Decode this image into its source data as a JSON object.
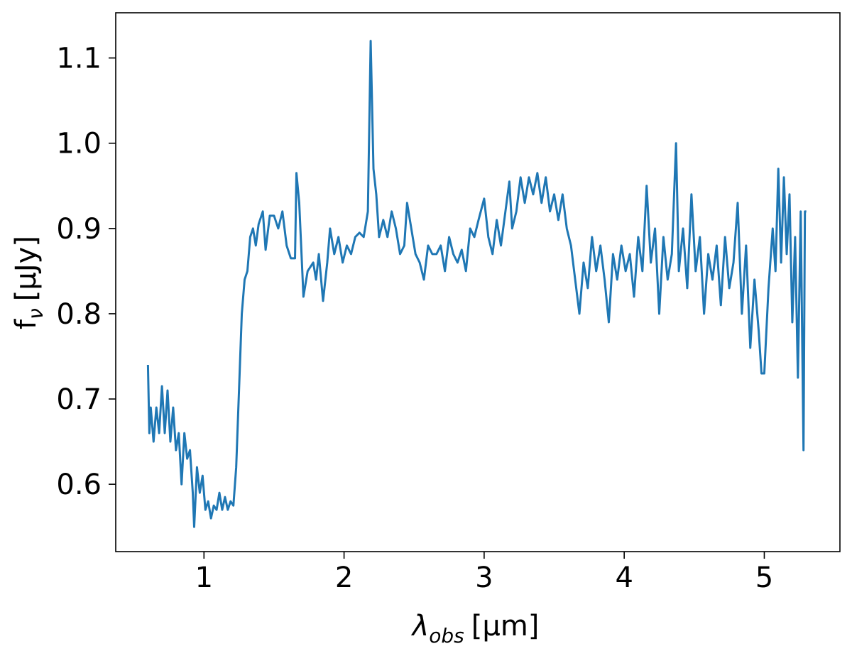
{
  "chart_data": {
    "type": "line",
    "x_label": {
      "main": "λ",
      "subscript": "obs",
      "rest": "[μm]"
    },
    "y_label": {
      "main": "f",
      "subscript": "ν",
      "rest": "[μJy]"
    },
    "xlim": [
      0.37,
      5.54
    ],
    "ylim": [
      0.521,
      1.153
    ],
    "xticks": [
      1,
      2,
      3,
      4,
      5
    ],
    "yticks": [
      0.6,
      0.7,
      0.8,
      0.9,
      {
        "value": 1,
        "label": "1.0"
      },
      1.1
    ],
    "grid": false,
    "series": [
      {
        "color": "#1f77b4",
        "x": [
          0.6,
          0.61,
          0.62,
          0.64,
          0.66,
          0.68,
          0.7,
          0.72,
          0.74,
          0.76,
          0.78,
          0.8,
          0.82,
          0.84,
          0.86,
          0.88,
          0.9,
          0.92,
          0.93,
          0.95,
          0.97,
          0.99,
          1.01,
          1.03,
          1.05,
          1.07,
          1.09,
          1.11,
          1.13,
          1.15,
          1.17,
          1.19,
          1.21,
          1.23,
          1.25,
          1.27,
          1.29,
          1.31,
          1.33,
          1.35,
          1.37,
          1.39,
          1.42,
          1.44,
          1.47,
          1.5,
          1.53,
          1.56,
          1.59,
          1.62,
          1.65,
          1.66,
          1.68,
          1.71,
          1.74,
          1.78,
          1.8,
          1.82,
          1.85,
          1.88,
          1.9,
          1.93,
          1.96,
          1.99,
          2.02,
          2.05,
          2.08,
          2.11,
          2.14,
          2.17,
          2.19,
          2.21,
          2.23,
          2.25,
          2.28,
          2.31,
          2.34,
          2.37,
          2.4,
          2.43,
          2.45,
          2.48,
          2.51,
          2.54,
          2.57,
          2.6,
          2.63,
          2.66,
          2.69,
          2.72,
          2.75,
          2.78,
          2.81,
          2.84,
          2.87,
          2.9,
          2.93,
          2.96,
          3.0,
          3.03,
          3.06,
          3.09,
          3.12,
          3.18,
          3.2,
          3.23,
          3.26,
          3.29,
          3.32,
          3.35,
          3.38,
          3.41,
          3.44,
          3.47,
          3.5,
          3.53,
          3.56,
          3.59,
          3.62,
          3.65,
          3.68,
          3.71,
          3.74,
          3.77,
          3.8,
          3.83,
          3.86,
          3.89,
          3.92,
          3.95,
          3.98,
          4.01,
          4.04,
          4.07,
          4.1,
          4.13,
          4.16,
          4.19,
          4.22,
          4.25,
          4.28,
          4.31,
          4.34,
          4.37,
          4.39,
          4.42,
          4.45,
          4.48,
          4.51,
          4.54,
          4.57,
          4.6,
          4.63,
          4.66,
          4.69,
          4.72,
          4.75,
          4.78,
          4.81,
          4.84,
          4.87,
          4.9,
          4.93,
          4.96,
          4.98,
          5.0,
          5.03,
          5.06,
          5.08,
          5.1,
          5.12,
          5.14,
          5.16,
          5.18,
          5.2,
          5.22,
          5.24,
          5.26,
          5.28,
          5.29,
          5.3
        ],
        "values": [
          0.74,
          0.66,
          0.69,
          0.65,
          0.69,
          0.66,
          0.715,
          0.66,
          0.71,
          0.65,
          0.69,
          0.64,
          0.66,
          0.6,
          0.66,
          0.63,
          0.64,
          0.59,
          0.55,
          0.62,
          0.59,
          0.61,
          0.57,
          0.58,
          0.56,
          0.575,
          0.57,
          0.59,
          0.57,
          0.585,
          0.57,
          0.58,
          0.575,
          0.62,
          0.71,
          0.8,
          0.84,
          0.85,
          0.89,
          0.9,
          0.88,
          0.905,
          0.92,
          0.875,
          0.915,
          0.915,
          0.9,
          0.92,
          0.88,
          0.865,
          0.865,
          0.965,
          0.93,
          0.82,
          0.85,
          0.86,
          0.84,
          0.87,
          0.815,
          0.86,
          0.9,
          0.87,
          0.89,
          0.86,
          0.88,
          0.87,
          0.89,
          0.895,
          0.89,
          0.92,
          1.12,
          0.97,
          0.94,
          0.89,
          0.91,
          0.89,
          0.92,
          0.9,
          0.87,
          0.88,
          0.93,
          0.9,
          0.87,
          0.86,
          0.84,
          0.88,
          0.87,
          0.87,
          0.88,
          0.85,
          0.89,
          0.87,
          0.86,
          0.875,
          0.85,
          0.9,
          0.89,
          0.91,
          0.935,
          0.89,
          0.87,
          0.91,
          0.88,
          0.955,
          0.9,
          0.92,
          0.96,
          0.93,
          0.96,
          0.94,
          0.965,
          0.93,
          0.96,
          0.92,
          0.94,
          0.91,
          0.94,
          0.9,
          0.88,
          0.84,
          0.8,
          0.86,
          0.83,
          0.89,
          0.85,
          0.88,
          0.84,
          0.79,
          0.87,
          0.84,
          0.88,
          0.85,
          0.87,
          0.82,
          0.89,
          0.85,
          0.95,
          0.86,
          0.9,
          0.8,
          0.89,
          0.84,
          0.87,
          1.0,
          0.85,
          0.9,
          0.83,
          0.94,
          0.85,
          0.89,
          0.8,
          0.87,
          0.84,
          0.88,
          0.81,
          0.89,
          0.83,
          0.86,
          0.93,
          0.8,
          0.88,
          0.76,
          0.84,
          0.78,
          0.73,
          0.73,
          0.83,
          0.9,
          0.85,
          0.97,
          0.86,
          0.96,
          0.87,
          0.94,
          0.79,
          0.89,
          0.725,
          0.92,
          0.64,
          0.92,
          0.92
        ]
      }
    ]
  }
}
